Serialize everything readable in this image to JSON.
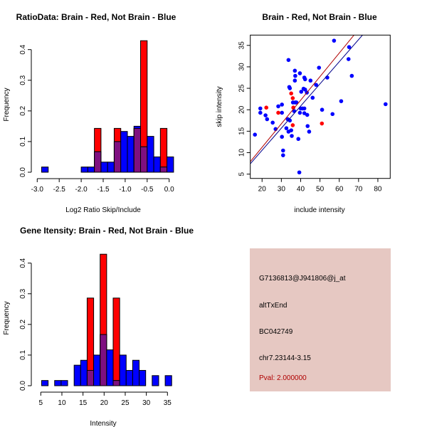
{
  "colors": {
    "red": "#ff0000",
    "blue": "#0000ff",
    "overlap": "#7f1080",
    "panel": "#e6c8c2",
    "pval": "#b00000",
    "red_line": "#b00000",
    "blue_line": "#00008b"
  },
  "chart_data": [
    {
      "type": "bar",
      "title": "RatioData: Brain - Red, Not Brain - Blue",
      "xlabel": "Log2 Ratio Skip/Include",
      "ylabel": "Frequency",
      "xlim": [
        -3.0,
        0.0
      ],
      "ylim": [
        0,
        0.4
      ],
      "xticks": [
        "-3.0",
        "-2.5",
        "-2.0",
        "-1.5",
        "-1.0",
        "-0.5",
        "0.0"
      ],
      "xtick_values": [
        -3.0,
        -2.5,
        -2.0,
        -1.5,
        -1.0,
        -0.5,
        0.0
      ],
      "yticks": [
        "0.0",
        "0.1",
        "0.2",
        "0.3",
        "0.4"
      ],
      "yticks_values": [
        0,
        0.1,
        0.2,
        0.3,
        0.4
      ],
      "bin_start": -2.9,
      "bin_width": 0.15,
      "series": [
        {
          "name": "Brain",
          "color": "red",
          "values": [
            0,
            0,
            0,
            0,
            0,
            0,
            0,
            0,
            0.143,
            0,
            0,
            0.143,
            0,
            0,
            0.143,
            0.429,
            0,
            0,
            0.143,
            0
          ]
        },
        {
          "name": "Not Brain",
          "color": "blue",
          "values": [
            0.017,
            0,
            0,
            0,
            0,
            0,
            0.017,
            0.017,
            0.067,
            0.033,
            0.033,
            0.1,
            0.133,
            0.117,
            0.15,
            0.083,
            0.117,
            0.05,
            0.017,
            0.05
          ]
        }
      ]
    },
    {
      "type": "scatter",
      "title": "Brain - Red, Not Brain - Blue",
      "xlabel": "include intensity",
      "ylabel": "skip intensity",
      "xlim": [
        13.9,
        86.4
      ],
      "ylim": [
        4.0,
        37.4
      ],
      "xticks": [
        "20",
        "30",
        "40",
        "50",
        "60",
        "70",
        "80"
      ],
      "xtick_values": [
        20,
        30,
        40,
        50,
        60,
        70,
        80
      ],
      "yticks": [
        "5",
        "10",
        "15",
        "20",
        "25",
        "30",
        "35"
      ],
      "yticks_values": [
        5,
        10,
        15,
        20,
        25,
        30,
        35
      ],
      "series": [
        {
          "name": "Not Brain",
          "color": "blue",
          "points": [
            [
              16.3,
              14.2
            ],
            [
              19.1,
              20.3
            ],
            [
              19.1,
              19.3
            ],
            [
              21.8,
              18.7
            ],
            [
              22.6,
              17.8
            ],
            [
              25.5,
              17.0
            ],
            [
              27.0,
              15.5
            ],
            [
              28.4,
              20.8
            ],
            [
              30.3,
              21.2
            ],
            [
              30.3,
              19.3
            ],
            [
              30.3,
              13.7
            ],
            [
              30.9,
              10.5
            ],
            [
              30.9,
              9.4
            ],
            [
              32.6,
              15.7
            ],
            [
              33.3,
              17.8
            ],
            [
              33.7,
              31.6
            ],
            [
              33.7,
              14.9
            ],
            [
              34.1,
              25.3
            ],
            [
              34.4,
              25.0
            ],
            [
              34.4,
              17.5
            ],
            [
              35.1,
              15.2
            ],
            [
              35.4,
              13.9
            ],
            [
              36.0,
              21.7
            ],
            [
              36.6,
              19.7
            ],
            [
              37.0,
              29.1
            ],
            [
              37.2,
              27.9
            ],
            [
              37.0,
              26.8
            ],
            [
              37.2,
              21.7
            ],
            [
              37.8,
              21.7
            ],
            [
              38.8,
              13.2
            ],
            [
              39.3,
              5.4
            ],
            [
              39.6,
              28.5
            ],
            [
              39.6,
              19.3
            ],
            [
              40.3,
              24.2
            ],
            [
              40.0,
              20.3
            ],
            [
              40.9,
              20.3
            ],
            [
              41.5,
              24.9
            ],
            [
              41.9,
              20.3
            ],
            [
              41.9,
              19.2
            ],
            [
              41.9,
              27.5
            ],
            [
              42.3,
              27.1
            ],
            [
              42.3,
              24.7
            ],
            [
              43.2,
              24.0
            ],
            [
              43.4,
              18.8
            ],
            [
              43.6,
              16.2
            ],
            [
              44.4,
              14.9
            ],
            [
              45.1,
              26.8
            ],
            [
              46.2,
              22.8
            ],
            [
              48.0,
              25.8
            ],
            [
              49.5,
              29.8
            ],
            [
              51.1,
              20.0
            ],
            [
              53.8,
              27.5
            ],
            [
              56.5,
              19.0
            ],
            [
              57.3,
              36.1
            ],
            [
              61.0,
              22.0
            ],
            [
              64.8,
              31.8
            ],
            [
              65.1,
              34.6
            ],
            [
              66.5,
              27.9
            ],
            [
              84.0,
              21.3
            ]
          ]
        },
        {
          "name": "Brain",
          "color": "red",
          "points": [
            [
              22.2,
              20.5
            ],
            [
              28.4,
              19.3
            ],
            [
              35.1,
              23.8
            ],
            [
              35.9,
              22.7
            ],
            [
              36.2,
              20.5
            ],
            [
              35.9,
              16.4
            ],
            [
              51.0,
              16.8
            ]
          ]
        }
      ],
      "fit_lines": [
        {
          "name": "Brain fit",
          "color": "red_line",
          "slope": 0.549,
          "intercept": 0.27
        },
        {
          "name": "Not Brain fit",
          "color": "blue_line",
          "slope": 0.516,
          "intercept": 0.23
        }
      ]
    },
    {
      "type": "bar",
      "title": "Gene Itensity: Brain - Red, Not Brain - Blue",
      "xlabel": "Intensity",
      "ylabel": "Frequency",
      "xlim": [
        5,
        35
      ],
      "ylim": [
        0,
        0.4
      ],
      "xticks": [
        "5",
        "10",
        "15",
        "20",
        "25",
        "30",
        "35"
      ],
      "xtick_values": [
        5,
        10,
        15,
        20,
        25,
        30,
        35
      ],
      "yticks": [
        "0.0",
        "0.1",
        "0.2",
        "0.3",
        "0.4"
      ],
      "yticks_values": [
        0,
        0.1,
        0.2,
        0.3,
        0.4
      ],
      "bin_start": 5.2,
      "bin_width": 1.54,
      "series": [
        {
          "name": "Brain",
          "color": "red",
          "values": [
            0,
            0,
            0,
            0,
            0,
            0,
            0,
            0.286,
            0,
            0.429,
            0,
            0.286,
            0,
            0,
            0,
            0,
            0,
            0,
            0,
            0
          ]
        },
        {
          "name": "Not Brain",
          "color": "blue",
          "values": [
            0.017,
            0,
            0.017,
            0.017,
            0,
            0.067,
            0.083,
            0.05,
            0.1,
            0.167,
            0.117,
            0.017,
            0.1,
            0.05,
            0.083,
            0.05,
            0,
            0.033,
            0,
            0.033
          ]
        }
      ]
    }
  ],
  "info_panel": {
    "probe": "G7136813@J941806@j_at",
    "event": "altTxEnd",
    "accession": "BC042749",
    "location": "chr7.23144-3.15",
    "pval": "Pval: 2.000000"
  }
}
